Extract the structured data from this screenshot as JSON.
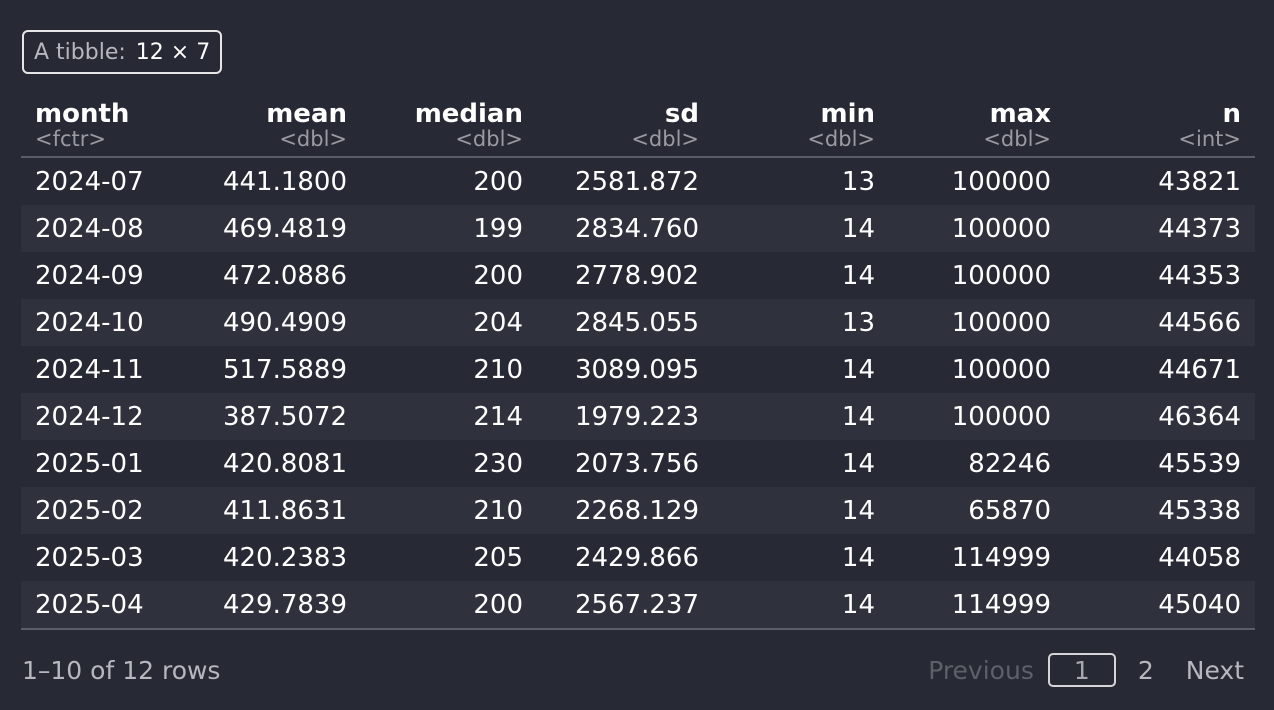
{
  "badge": {
    "label": "A tibble:",
    "dims": "12 × 7"
  },
  "columns": [
    {
      "name": "month",
      "type": "<fctr>"
    },
    {
      "name": "mean",
      "type": "<dbl>"
    },
    {
      "name": "median",
      "type": "<dbl>"
    },
    {
      "name": "sd",
      "type": "<dbl>"
    },
    {
      "name": "min",
      "type": "<dbl>"
    },
    {
      "name": "max",
      "type": "<dbl>"
    },
    {
      "name": "n",
      "type": "<int>"
    }
  ],
  "rows": [
    [
      "2024-07",
      "441.1800",
      "200",
      "2581.872",
      "13",
      "100000",
      "43821"
    ],
    [
      "2024-08",
      "469.4819",
      "199",
      "2834.760",
      "14",
      "100000",
      "44373"
    ],
    [
      "2024-09",
      "472.0886",
      "200",
      "2778.902",
      "14",
      "100000",
      "44353"
    ],
    [
      "2024-10",
      "490.4909",
      "204",
      "2845.055",
      "13",
      "100000",
      "44566"
    ],
    [
      "2024-11",
      "517.5889",
      "210",
      "3089.095",
      "14",
      "100000",
      "44671"
    ],
    [
      "2024-12",
      "387.5072",
      "214",
      "1979.223",
      "14",
      "100000",
      "46364"
    ],
    [
      "2025-01",
      "420.8081",
      "230",
      "2073.756",
      "14",
      "82246",
      "45539"
    ],
    [
      "2025-02",
      "411.8631",
      "210",
      "2268.129",
      "14",
      "65870",
      "45338"
    ],
    [
      "2025-03",
      "420.2383",
      "205",
      "2429.866",
      "14",
      "114999",
      "44058"
    ],
    [
      "2025-04",
      "429.7839",
      "200",
      "2567.237",
      "14",
      "114999",
      "45040"
    ]
  ],
  "footer": {
    "info": "1–10 of 12 rows",
    "previous": "Previous",
    "current_page": "1",
    "page_2": "2",
    "next": "Next"
  }
}
